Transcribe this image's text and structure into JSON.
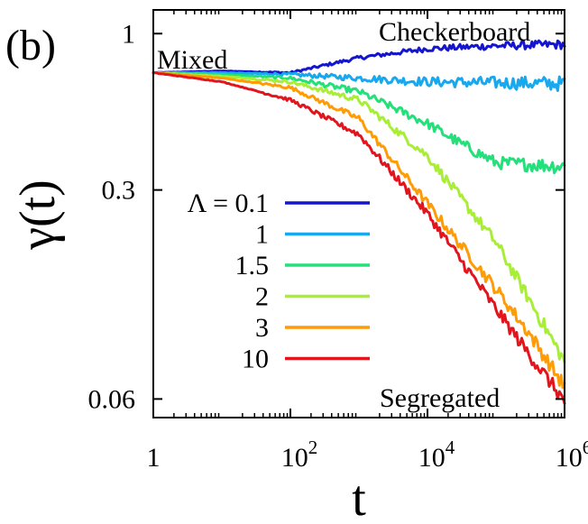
{
  "panel_label": "(b)",
  "chart_data": {
    "type": "line",
    "title": "",
    "xlabel": "t",
    "ylabel": "γ(t)",
    "xscale": "log",
    "yscale": "log",
    "xlim": [
      1,
      1000000
    ],
    "ylim": [
      0.052,
      1.2
    ],
    "grid": false,
    "legend_placement": "center-left",
    "x_ticks": [
      {
        "value": 1,
        "base": "1",
        "exp": ""
      },
      {
        "value": 100,
        "base": "10",
        "exp": "2"
      },
      {
        "value": 10000,
        "base": "10",
        "exp": "4"
      },
      {
        "value": 1000000,
        "base": "10",
        "exp": "6"
      }
    ],
    "y_ticks": [
      {
        "value": 1,
        "label": "1"
      },
      {
        "value": 0.3,
        "label": "0.3"
      },
      {
        "value": 0.06,
        "label": "0.06"
      }
    ],
    "annotations": [
      {
        "text": "Checkerboard",
        "near": "top-right"
      },
      {
        "text": "Mixed",
        "near": "top-left"
      },
      {
        "text": "Segregated",
        "near": "bottom-right"
      }
    ],
    "legend_prefix": "Λ = ",
    "series": [
      {
        "name": "0.1",
        "color": "#1515d0",
        "t": [
          1,
          10,
          100,
          1000,
          10000,
          100000,
          1000000
        ],
        "values": [
          0.74,
          0.75,
          0.74,
          0.83,
          0.89,
          0.91,
          0.92
        ]
      },
      {
        "name": "1",
        "color": "#18a8ee",
        "t": [
          1,
          10,
          100,
          1000,
          10000,
          100000,
          1000000
        ],
        "values": [
          0.74,
          0.74,
          0.73,
          0.71,
          0.69,
          0.685,
          0.68
        ]
      },
      {
        "name": "1.5",
        "color": "#22e07a",
        "t": [
          1,
          10,
          100,
          1000,
          10000,
          30000,
          100000,
          1000000
        ],
        "values": [
          0.74,
          0.73,
          0.71,
          0.64,
          0.5,
          0.43,
          0.37,
          0.36
        ]
      },
      {
        "name": "2",
        "color": "#a8ee36",
        "t": [
          1,
          10,
          100,
          1000,
          10000,
          100000,
          300000,
          1000000
        ],
        "values": [
          0.74,
          0.72,
          0.69,
          0.6,
          0.39,
          0.2,
          0.13,
          0.08
        ]
      },
      {
        "name": "3",
        "color": "#ff9b05",
        "t": [
          1,
          10,
          100,
          1000,
          10000,
          100000,
          300000,
          1000000
        ],
        "values": [
          0.74,
          0.71,
          0.66,
          0.52,
          0.27,
          0.14,
          0.1,
          0.066
        ]
      },
      {
        "name": "10",
        "color": "#e2141c",
        "t": [
          1,
          10,
          100,
          1000,
          10000,
          100000,
          300000,
          1000000
        ],
        "values": [
          0.74,
          0.69,
          0.6,
          0.46,
          0.25,
          0.12,
          0.085,
          0.059
        ]
      }
    ]
  }
}
